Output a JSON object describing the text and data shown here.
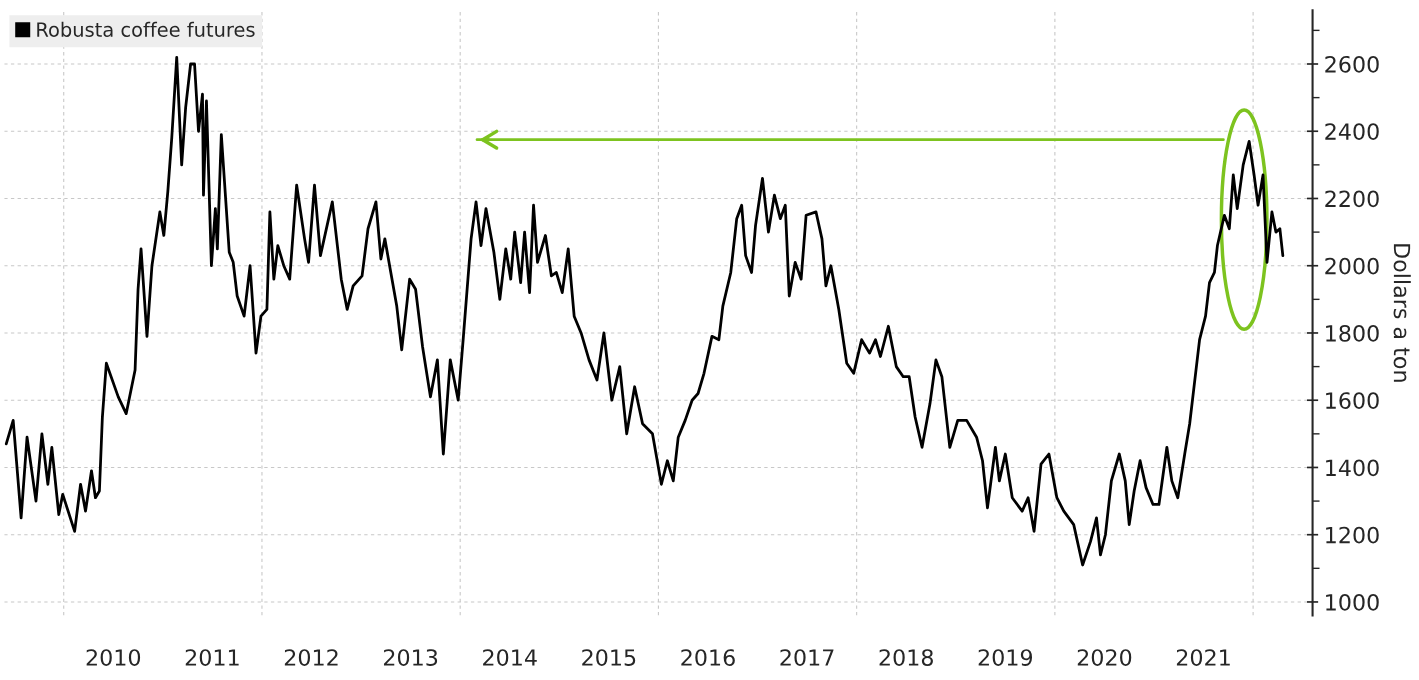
{
  "chart_data": {
    "type": "line",
    "ylabel": "Dollars a ton",
    "legend": "top left",
    "grid": true,
    "line_style": "solid",
    "marker": "none",
    "xlim": [
      2009.4,
      2022.6
    ],
    "ylim": [
      960,
      2760
    ],
    "xticks": [
      {
        "value": 2010,
        "label": null
      },
      {
        "value": 2012,
        "label": null
      },
      {
        "value": 2014,
        "label": null
      },
      {
        "value": 2016,
        "label": null
      },
      {
        "value": 2018,
        "label": null
      },
      {
        "value": 2020,
        "label": null
      },
      {
        "value": 2022,
        "label": null
      },
      {
        "value": 2010.5,
        "label": "2010"
      },
      {
        "value": 2011.5,
        "label": "2011"
      },
      {
        "value": 2012.5,
        "label": "2012"
      },
      {
        "value": 2013.5,
        "label": "2013"
      },
      {
        "value": 2014.5,
        "label": "2014"
      },
      {
        "value": 2015.5,
        "label": "2015"
      },
      {
        "value": 2016.5,
        "label": "2016"
      },
      {
        "value": 2017.5,
        "label": "2017"
      },
      {
        "value": 2018.5,
        "label": "2018"
      },
      {
        "value": 2019.5,
        "label": "2019"
      },
      {
        "value": 2020.5,
        "label": "2020"
      },
      {
        "value": 2021.5,
        "label": "2021"
      }
    ],
    "yticks": [
      1000,
      1200,
      1400,
      1600,
      1800,
      2000,
      2200,
      2400,
      2600,
      {
        "value": 1100,
        "label": null
      },
      {
        "value": 1300,
        "label": null
      },
      {
        "value": 1500,
        "label": null
      },
      {
        "value": 1700,
        "label": null
      },
      {
        "value": 1900,
        "label": null
      },
      {
        "value": 2100,
        "label": null
      },
      {
        "value": 2300,
        "label": null
      },
      {
        "value": 2500,
        "label": null
      },
      {
        "value": 2700,
        "label": null
      }
    ],
    "series": [
      {
        "name": "Robusta coffee futures",
        "color": "#000000",
        "x": [
          2009.42,
          2009.49,
          2009.57,
          2009.63,
          2009.72,
          2009.78,
          2009.84,
          2009.88,
          2009.95,
          2009.99,
          2010.11,
          2010.17,
          2010.22,
          2010.28,
          2010.32,
          2010.36,
          2010.39,
          2010.43,
          2010.55,
          2010.63,
          2010.72,
          2010.75,
          2010.78,
          2010.84,
          2010.89,
          2010.97,
          2011.01,
          2011.05,
          2011.09,
          2011.14,
          2011.19,
          2011.23,
          2011.28,
          2011.32,
          2011.36,
          2011.4,
          2011.41,
          2011.44,
          2011.49,
          2011.53,
          2011.55,
          2011.59,
          2011.67,
          2011.71,
          2011.75,
          2011.82,
          2011.88,
          2011.94,
          2011.99,
          2012.05,
          2012.08,
          2012.12,
          2012.16,
          2012.22,
          2012.28,
          2012.35,
          2012.43,
          2012.47,
          2012.53,
          2012.59,
          2012.71,
          2012.8,
          2012.86,
          2012.92,
          2013.01,
          2013.07,
          2013.15,
          2013.2,
          2013.24,
          2013.3,
          2013.36,
          2013.41,
          2013.49,
          2013.55,
          2013.62,
          2013.7,
          2013.77,
          2013.83,
          2013.9,
          2013.98,
          2014.03,
          2014.11,
          2014.16,
          2014.21,
          2014.26,
          2014.34,
          2014.4,
          2014.46,
          2014.51,
          2014.55,
          2014.61,
          2014.65,
          2014.7,
          2014.74,
          2014.78,
          2014.86,
          2014.92,
          2014.97,
          2015.03,
          2015.09,
          2015.15,
          2015.22,
          2015.3,
          2015.38,
          2015.45,
          2015.53,
          2015.61,
          2015.68,
          2015.76,
          2015.84,
          2015.94,
          2016.03,
          2016.09,
          2016.15,
          2016.2,
          2016.27,
          2016.34,
          2016.4,
          2016.46,
          2016.54,
          2016.61,
          2016.65,
          2016.73,
          2016.79,
          2016.84,
          2016.88,
          2016.94,
          2016.98,
          2017.05,
          2017.11,
          2017.17,
          2017.23,
          2017.28,
          2017.32,
          2017.38,
          2017.44,
          2017.49,
          2017.59,
          2017.65,
          2017.69,
          2017.74,
          2017.82,
          2017.9,
          2017.97,
          2018.05,
          2018.13,
          2018.19,
          2018.24,
          2018.32,
          2018.4,
          2018.47,
          2018.53,
          2018.59,
          2018.66,
          2018.74,
          2018.8,
          2018.86,
          2018.94,
          2019.02,
          2019.11,
          2019.21,
          2019.27,
          2019.32,
          2019.4,
          2019.44,
          2019.5,
          2019.57,
          2019.67,
          2019.73,
          2019.79,
          2019.86,
          2019.94,
          2020.02,
          2020.09,
          2020.19,
          2020.28,
          2020.36,
          2020.42,
          2020.46,
          2020.51,
          2020.57,
          2020.65,
          2020.71,
          2020.75,
          2020.8,
          2020.86,
          2020.92,
          2020.99,
          2021.05,
          2021.13,
          2021.18,
          2021.24,
          2021.31,
          2021.36,
          2021.4,
          2021.46,
          2021.52,
          2021.56,
          2021.61,
          2021.64,
          2021.71,
          2021.76,
          2021.8,
          2021.84,
          2021.9,
          2021.96,
          2022.01,
          2022.05,
          2022.1,
          2022.14,
          2022.19,
          2022.23,
          2022.27,
          2022.3
        ],
        "values": [
          1470,
          1540,
          1250,
          1490,
          1300,
          1500,
          1350,
          1460,
          1260,
          1320,
          1210,
          1350,
          1270,
          1390,
          1310,
          1330,
          1550,
          1710,
          1610,
          1560,
          1690,
          1930,
          2050,
          1790,
          2000,
          2160,
          2090,
          2220,
          2380,
          2620,
          2300,
          2470,
          2600,
          2600,
          2400,
          2510,
          2210,
          2490,
          2000,
          2170,
          2050,
          2390,
          2040,
          2010,
          1910,
          1850,
          2000,
          1740,
          1850,
          1870,
          2160,
          1960,
          2060,
          2000,
          1960,
          2240,
          2080,
          2010,
          2240,
          2030,
          2190,
          1960,
          1870,
          1940,
          1970,
          2110,
          2190,
          2020,
          2080,
          1980,
          1880,
          1750,
          1960,
          1930,
          1760,
          1610,
          1720,
          1440,
          1720,
          1600,
          1780,
          2080,
          2190,
          2060,
          2170,
          2040,
          1900,
          2050,
          1960,
          2100,
          1950,
          2100,
          1920,
          2180,
          2010,
          2090,
          1970,
          1980,
          1920,
          2050,
          1850,
          1800,
          1720,
          1660,
          1800,
          1600,
          1700,
          1500,
          1640,
          1530,
          1500,
          1350,
          1420,
          1360,
          1490,
          1540,
          1600,
          1620,
          1680,
          1790,
          1780,
          1880,
          1980,
          2140,
          2180,
          2030,
          1980,
          2120,
          2260,
          2100,
          2210,
          2140,
          2180,
          1910,
          2010,
          1960,
          2150,
          2160,
          2080,
          1940,
          2000,
          1870,
          1710,
          1680,
          1780,
          1740,
          1780,
          1730,
          1820,
          1700,
          1670,
          1670,
          1550,
          1460,
          1590,
          1720,
          1670,
          1460,
          1540,
          1540,
          1490,
          1420,
          1280,
          1460,
          1360,
          1440,
          1310,
          1270,
          1310,
          1210,
          1410,
          1440,
          1310,
          1270,
          1230,
          1110,
          1180,
          1250,
          1140,
          1200,
          1360,
          1440,
          1360,
          1230,
          1330,
          1420,
          1340,
          1290,
          1290,
          1460,
          1360,
          1310,
          1440,
          1530,
          1630,
          1780,
          1850,
          1950,
          1980,
          2060,
          2150,
          2110,
          2270,
          2170,
          2300,
          2370,
          2270,
          2180,
          2270,
          2010,
          2160,
          2100,
          2110,
          2030
        ]
      },
      {
        "type": "line",
        "color": "#7dc31f",
        "x": [
          2021.7,
          2014.17
        ],
        "values": [
          2375,
          2375
        ]
      }
    ]
  }
}
